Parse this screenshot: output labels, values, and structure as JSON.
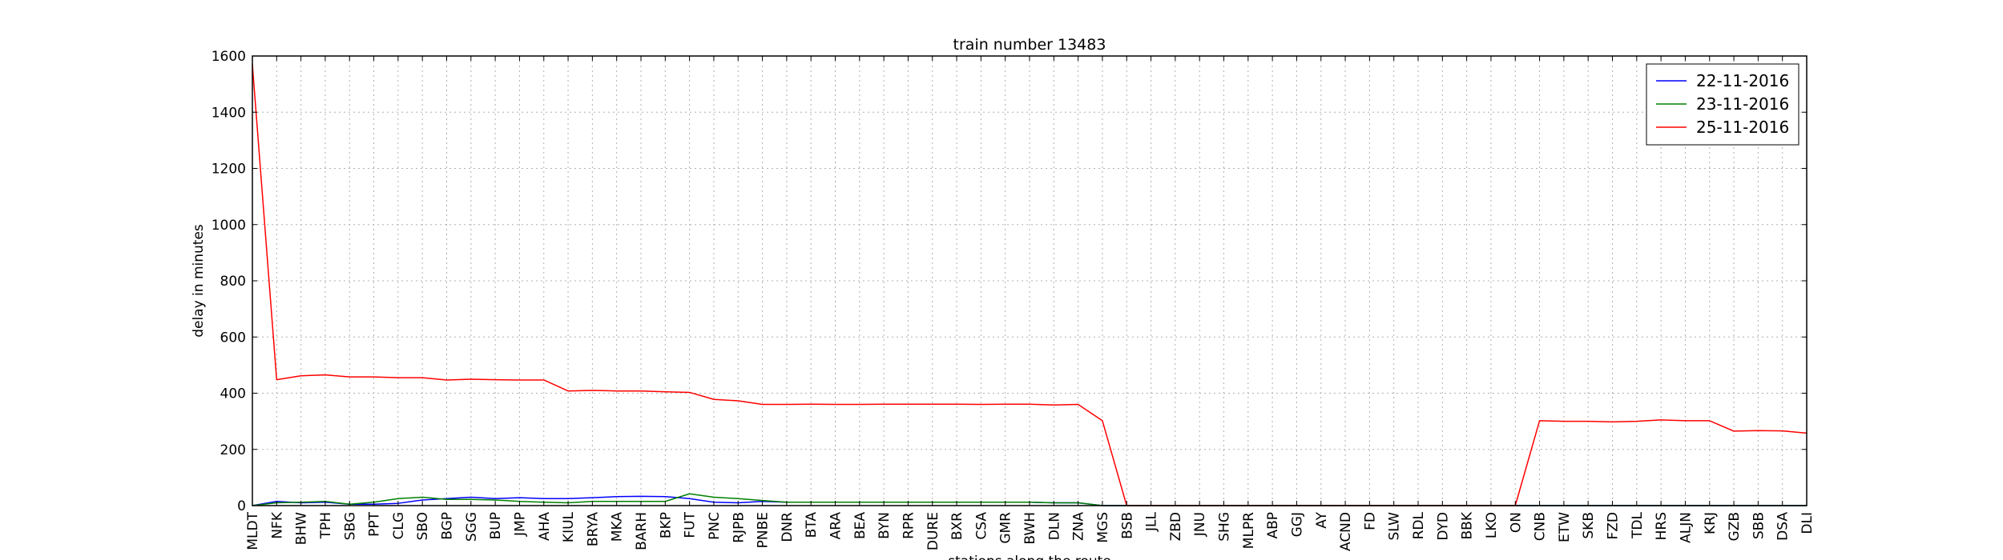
{
  "chart_data": {
    "type": "line",
    "title": "train number 13483",
    "xlabel": "stations along the route",
    "ylabel": "delay in minutes",
    "ylim": [
      0,
      1600
    ],
    "yticks": [
      0,
      200,
      400,
      600,
      800,
      1000,
      1200,
      1400,
      1600
    ],
    "grid": true,
    "legend_position": "top-right",
    "categories": [
      "MLDT",
      "NFK",
      "BHW",
      "TPH",
      "SBG",
      "PPT",
      "CLG",
      "SBO",
      "BGP",
      "SGG",
      "BUP",
      "JMP",
      "AHA",
      "KIUL",
      "BRYA",
      "MKA",
      "BARH",
      "BKP",
      "FUT",
      "PNC",
      "RJPB",
      "PNBE",
      "DNR",
      "BTA",
      "ARA",
      "BEA",
      "BYN",
      "RPR",
      "DURE",
      "BXR",
      "CSA",
      "GMR",
      "BWH",
      "DLN",
      "ZNA",
      "MGS",
      "BSB",
      "JLL",
      "ZBD",
      "JNU",
      "SHG",
      "MLPR",
      "ABP",
      "GGJ",
      "AY",
      "ACND",
      "FD",
      "SLW",
      "RDL",
      "DYD",
      "BBK",
      "LKO",
      "ON",
      "CNB",
      "ETW",
      "SKB",
      "FZD",
      "TDL",
      "HRS",
      "ALJN",
      "KRJ",
      "GZB",
      "SBB",
      "DSA",
      "DLI"
    ],
    "series": [
      {
        "name": "22-11-2016",
        "color": "#0000ff",
        "values": [
          0,
          15,
          10,
          12,
          5,
          5,
          8,
          20,
          25,
          30,
          25,
          28,
          25,
          25,
          28,
          32,
          33,
          32,
          25,
          12,
          10,
          15,
          12,
          12,
          12,
          12,
          12,
          12,
          12,
          12,
          12,
          12,
          12,
          10,
          10,
          0,
          0,
          0,
          0,
          0,
          0,
          0,
          0,
          0,
          0,
          0,
          0,
          0,
          0,
          0,
          0,
          0,
          0,
          0,
          0,
          0,
          0,
          0,
          0,
          0,
          0,
          0,
          0,
          0,
          0
        ]
      },
      {
        "name": "23-11-2016",
        "color": "#008000",
        "values": [
          0,
          10,
          12,
          15,
          5,
          12,
          25,
          30,
          22,
          22,
          20,
          15,
          12,
          10,
          15,
          15,
          15,
          15,
          42,
          30,
          25,
          18,
          12,
          12,
          12,
          12,
          12,
          12,
          12,
          12,
          12,
          12,
          12,
          10,
          10,
          0,
          0,
          0,
          0,
          0,
          0,
          0,
          0,
          0,
          0,
          0,
          0,
          0,
          0,
          0,
          0,
          0,
          0,
          0,
          0,
          0,
          0,
          0,
          0,
          0,
          0,
          0,
          0,
          0,
          0
        ]
      },
      {
        "name": "25-11-2016",
        "color": "#ff0000",
        "values": [
          1570,
          448,
          462,
          465,
          458,
          458,
          455,
          455,
          447,
          450,
          448,
          447,
          447,
          408,
          410,
          408,
          408,
          405,
          403,
          378,
          373,
          360,
          360,
          361,
          360,
          360,
          361,
          361,
          361,
          361,
          360,
          361,
          361,
          358,
          360,
          302,
          0,
          0,
          0,
          0,
          0,
          0,
          0,
          0,
          0,
          0,
          0,
          0,
          0,
          0,
          0,
          0,
          0,
          302,
          300,
          300,
          298,
          300,
          305,
          302,
          302,
          265,
          267,
          266,
          258
        ]
      }
    ]
  }
}
